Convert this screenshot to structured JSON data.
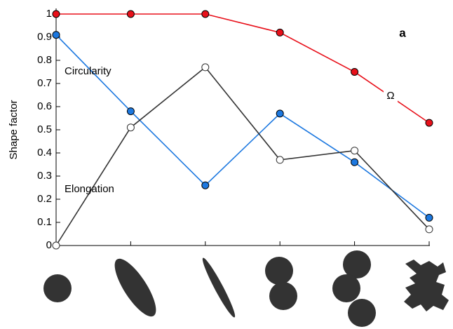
{
  "chart_data": {
    "type": "line",
    "ylabel": "Shape factor",
    "annotation": "a",
    "categories": [
      null,
      null,
      null,
      null,
      null,
      null
    ],
    "series": [
      {
        "name": "Ω",
        "color": "#e8101a",
        "marker_face": "#e8101a",
        "values": [
          1,
          1,
          1,
          0.92,
          0.75,
          0.53
        ]
      },
      {
        "name": "Circularity",
        "color": "#1c78e0",
        "marker_face": "#1c78e0",
        "values": [
          0.91,
          0.58,
          0.26,
          0.57,
          0.36,
          0.12
        ]
      },
      {
        "name": "Elongation",
        "color": "#333333",
        "marker_face": "#ffffff",
        "values": [
          0,
          0.51,
          0.77,
          0.37,
          0.41,
          0.07
        ]
      }
    ],
    "ylim": [
      0,
      1
    ],
    "yticks": [
      0,
      0.1,
      0.2,
      0.3,
      0.4,
      0.5,
      0.6,
      0.7,
      0.8,
      0.9,
      1
    ]
  }
}
